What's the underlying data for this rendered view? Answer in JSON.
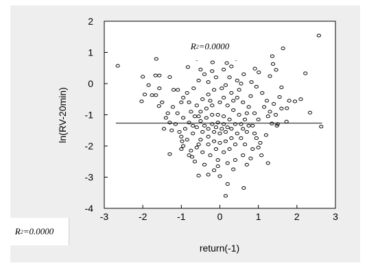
{
  "colors": {
    "background": "#ffffff",
    "panel": "#eeeeee",
    "plot_area": "#ffffff",
    "marker": "#000000",
    "fit_line": "#000000"
  },
  "annotations": {
    "r2_inner": {
      "prefix": "R",
      "sup": "2",
      "suffix": "=0.0000"
    },
    "r2_outer": {
      "prefix": "R",
      "sup": "2",
      "suffix": "=0.0000"
    }
  },
  "chart_data": {
    "type": "scatter",
    "title": "",
    "xlabel": "return(-1)",
    "ylabel": "ln(RV-20min)",
    "xlim": [
      -3,
      3
    ],
    "ylim": [
      -4,
      2
    ],
    "xticks": [
      -3,
      -2,
      -1,
      0,
      1,
      2,
      3
    ],
    "yticks": [
      -4,
      -3,
      -2,
      -1,
      0,
      1,
      2
    ],
    "grid": false,
    "legend": "none",
    "marker": "open-circle",
    "fit_line": {
      "intercept": -1.27,
      "slope": 0.0,
      "x_range": [
        -2.7,
        2.65
      ],
      "r_squared": "0.0000"
    },
    "points": [
      [
        -2.65,
        0.57
      ],
      [
        2.57,
        1.54
      ],
      [
        2.63,
        -1.38
      ],
      [
        -1.65,
        0.79
      ],
      [
        1.64,
        1.13
      ],
      [
        1.36,
        0.88
      ],
      [
        -2.0,
        0.22
      ],
      [
        -1.95,
        -0.35
      ],
      [
        -2.03,
        -0.57
      ],
      [
        -1.67,
        0.26
      ],
      [
        -1.57,
        0.26
      ],
      [
        -1.76,
        -0.37
      ],
      [
        -1.66,
        -0.37
      ],
      [
        -1.57,
        -0.15
      ],
      [
        -1.58,
        -0.72
      ],
      [
        -1.35,
        -0.95
      ],
      [
        -1.3,
        0.21
      ],
      [
        -1.3,
        -2.26
      ],
      [
        -1.09,
        -0.2
      ],
      [
        -0.83,
        0.53
      ],
      [
        -0.6,
        0.79
      ],
      [
        -0.3,
        1.07
      ],
      [
        -0.19,
        0.68
      ],
      [
        0.07,
        0.8
      ],
      [
        0.18,
        0.66
      ],
      [
        0.3,
        0.55
      ],
      [
        0.42,
        0.79
      ],
      [
        0.91,
        0.48
      ],
      [
        1.01,
        0.36
      ],
      [
        1.38,
        0.63
      ],
      [
        1.46,
        0.44
      ],
      [
        1.3,
        0.24
      ],
      [
        1.6,
        -0.12
      ],
      [
        1.55,
        -0.43
      ],
      [
        1.74,
        -0.79
      ],
      [
        1.95,
        -0.57
      ],
      [
        2.1,
        -0.5
      ],
      [
        2.22,
        0.33
      ],
      [
        2.34,
        -0.93
      ],
      [
        1.73,
        -1.22
      ],
      [
        1.48,
        -1.35
      ],
      [
        1.35,
        -1.28
      ],
      [
        1.08,
        -2.3
      ],
      [
        1.25,
        -2.55
      ],
      [
        0.7,
        -2.6
      ],
      [
        0.62,
        -3.35
      ],
      [
        0.15,
        -3.6
      ],
      [
        0.2,
        -3.22
      ],
      [
        0.0,
        -2.97
      ],
      [
        -0.15,
        -2.78
      ],
      [
        -0.3,
        -2.92
      ],
      [
        -0.55,
        -2.95
      ],
      [
        -0.72,
        -2.35
      ],
      [
        -0.8,
        -2.3
      ],
      [
        -1.0,
        -2.1
      ],
      [
        -0.98,
        -1.85
      ],
      [
        -1.25,
        -1.5
      ],
      [
        -1.4,
        -1.1
      ],
      [
        -1.22,
        -0.75
      ],
      [
        -1.0,
        -0.6
      ],
      [
        -0.85,
        -0.3
      ],
      [
        -0.68,
        -0.15
      ],
      [
        -0.55,
        0.1
      ],
      [
        -0.4,
        0.3
      ],
      [
        -0.2,
        0.4
      ],
      [
        0.25,
        0.2
      ],
      [
        0.45,
        0.1
      ],
      [
        0.62,
        0.3
      ],
      [
        0.82,
        0.05
      ],
      [
        0.95,
        -0.1
      ],
      [
        1.1,
        -0.3
      ],
      [
        1.22,
        -0.55
      ],
      [
        1.3,
        -0.9
      ],
      [
        1.45,
        -1.0
      ],
      [
        1.2,
        -1.65
      ],
      [
        1.05,
        -1.9
      ],
      [
        0.85,
        -2.1
      ],
      [
        0.6,
        -2.3
      ],
      [
        0.4,
        -2.45
      ],
      [
        0.2,
        -2.55
      ],
      [
        -0.05,
        -2.45
      ],
      [
        -0.25,
        -2.3
      ],
      [
        -0.45,
        -2.2
      ],
      [
        -0.6,
        -2.05
      ],
      [
        -0.85,
        -1.8
      ],
      [
        -1.05,
        -1.55
      ],
      [
        -1.15,
        -1.3
      ],
      [
        -0.95,
        -1.1
      ],
      [
        -0.75,
        -0.9
      ],
      [
        -0.6,
        -0.7
      ],
      [
        -0.45,
        -0.5
      ],
      [
        -0.3,
        -0.35
      ],
      [
        -0.15,
        -0.2
      ],
      [
        0.05,
        -0.15
      ],
      [
        0.15,
        -0.05
      ],
      [
        0.3,
        -0.3
      ],
      [
        0.45,
        -0.45
      ],
      [
        0.6,
        -0.6
      ],
      [
        0.75,
        -0.75
      ],
      [
        0.9,
        -0.95
      ],
      [
        1.0,
        -1.15
      ],
      [
        0.85,
        -1.35
      ],
      [
        0.7,
        -1.55
      ],
      [
        0.55,
        -1.75
      ],
      [
        0.4,
        -1.95
      ],
      [
        0.25,
        -2.1
      ],
      [
        0.1,
        -2.2
      ],
      [
        -0.1,
        -2.1
      ],
      [
        -0.3,
        -1.95
      ],
      [
        -0.5,
        -1.8
      ],
      [
        -0.7,
        -1.6
      ],
      [
        -0.9,
        -1.45
      ],
      [
        -0.8,
        -1.25
      ],
      [
        -0.65,
        -1.05
      ],
      [
        -0.5,
        -0.9
      ],
      [
        -0.35,
        -0.8
      ],
      [
        -0.2,
        -0.7
      ],
      [
        0.0,
        -0.6
      ],
      [
        0.2,
        -0.7
      ],
      [
        0.35,
        -0.85
      ],
      [
        0.5,
        -1.0
      ],
      [
        0.65,
        -1.15
      ],
      [
        0.75,
        -1.35
      ],
      [
        0.6,
        -1.45
      ],
      [
        0.45,
        -1.6
      ],
      [
        0.3,
        -1.75
      ],
      [
        0.15,
        -1.85
      ],
      [
        0.0,
        -1.9
      ],
      [
        -0.15,
        -1.85
      ],
      [
        -0.3,
        -1.7
      ],
      [
        -0.45,
        -1.55
      ],
      [
        -0.6,
        -1.4
      ],
      [
        -0.5,
        -1.2
      ],
      [
        -0.35,
        -1.1
      ],
      [
        -0.2,
        -1.0
      ],
      [
        -0.05,
        -1.0
      ],
      [
        0.1,
        -1.05
      ],
      [
        0.25,
        -1.15
      ],
      [
        0.4,
        -1.3
      ],
      [
        0.3,
        -1.45
      ],
      [
        0.15,
        -1.55
      ],
      [
        0.0,
        -1.6
      ],
      [
        -0.15,
        -1.55
      ],
      [
        -0.3,
        -1.45
      ],
      [
        -0.2,
        -1.3
      ],
      [
        -0.05,
        -1.25
      ],
      [
        0.1,
        -1.3
      ],
      [
        0.2,
        -1.4
      ],
      [
        0.05,
        -1.45
      ],
      [
        -0.1,
        -1.4
      ],
      [
        -0.4,
        -1.35
      ],
      [
        -0.55,
        -1.05
      ],
      [
        -0.7,
        -1.35
      ],
      [
        0.55,
        -1.3
      ],
      [
        0.7,
        -0.95
      ],
      [
        0.9,
        -1.6
      ],
      [
        -0.95,
        -2.0
      ],
      [
        -1.1,
        -0.95
      ],
      [
        -0.95,
        -0.45
      ],
      [
        1.15,
        -0.75
      ],
      [
        1.4,
        -0.65
      ],
      [
        -1.5,
        -0.6
      ],
      [
        -1.2,
        -0.2
      ],
      [
        -0.3,
        0.05
      ],
      [
        0.5,
        -0.2
      ],
      [
        -0.1,
        0.2
      ],
      [
        0.55,
        0.0
      ],
      [
        -0.65,
        -2.5
      ],
      [
        0.8,
        -2.4
      ],
      [
        0.35,
        -2.75
      ],
      [
        -0.4,
        -2.6
      ],
      [
        0.95,
        -1.75
      ],
      [
        -1.0,
        -1.7
      ],
      [
        1.25,
        -1.05
      ],
      [
        -1.3,
        -1.25
      ],
      [
        -0.05,
        -2.65
      ],
      [
        0.65,
        -1.95
      ],
      [
        -0.8,
        -0.6
      ],
      [
        0.35,
        -0.55
      ],
      [
        -0.25,
        -0.55
      ],
      [
        0.1,
        -0.45
      ],
      [
        0.8,
        -0.4
      ],
      [
        -0.75,
        -2.15
      ],
      [
        1.5,
        -1.3
      ],
      [
        -1.45,
        -1.45
      ],
      [
        -0.5,
        0.45
      ],
      [
        0.1,
        0.45
      ],
      [
        1.6,
        -0.8
      ],
      [
        1.8,
        -0.55
      ],
      [
        -1.85,
        -0.05
      ],
      [
        1.0,
        -2.05
      ],
      [
        -0.55,
        -1.95
      ]
    ]
  }
}
